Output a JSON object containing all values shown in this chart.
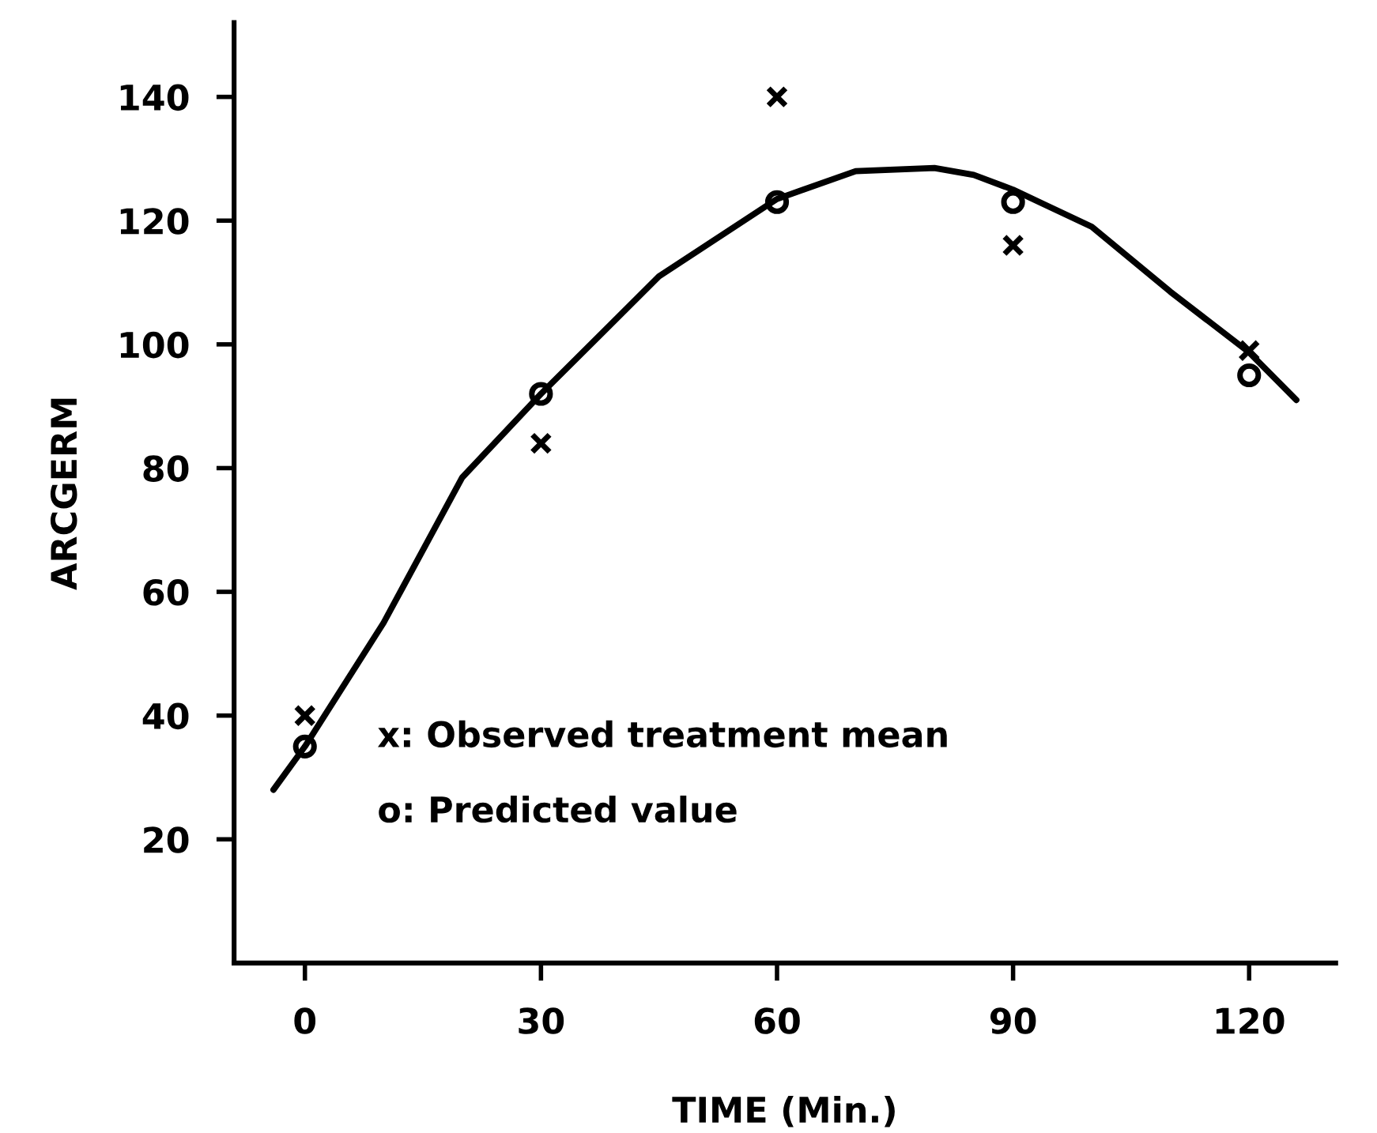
{
  "chart_data": {
    "type": "line",
    "xlabel": "TIME (Min.)",
    "ylabel": "ARCGERM",
    "xlim": [
      -9,
      131
    ],
    "ylim": [
      0,
      152
    ],
    "xticks": [
      0,
      30,
      60,
      90,
      120
    ],
    "yticks": [
      20,
      40,
      60,
      80,
      100,
      120,
      140
    ],
    "grid": false,
    "legend": false,
    "annotations": [
      "x: Observed treatment mean",
      "o: Predicted value"
    ],
    "series": [
      {
        "color": "#000000",
        "marker": "none",
        "line_style": "solid",
        "x": [
          -4,
          0,
          10,
          20,
          30,
          45,
          60,
          70,
          80,
          85,
          90,
          100,
          110,
          120,
          126
        ],
        "values": [
          28,
          35,
          55,
          78.5,
          92,
          111,
          123.5,
          128,
          128.5,
          127.4,
          125,
          119,
          108.5,
          98.7,
          91
        ]
      },
      {
        "type": "scatter",
        "color": "#000000",
        "marker": "cross",
        "x": [
          0,
          30,
          60,
          90,
          120
        ],
        "values": [
          40,
          84,
          140,
          116,
          99
        ]
      },
      {
        "type": "scatter",
        "color": "#000000",
        "marker": "circle",
        "x": [
          0,
          30,
          60,
          90,
          120
        ],
        "values": [
          35,
          92,
          123,
          123,
          95
        ]
      }
    ]
  }
}
